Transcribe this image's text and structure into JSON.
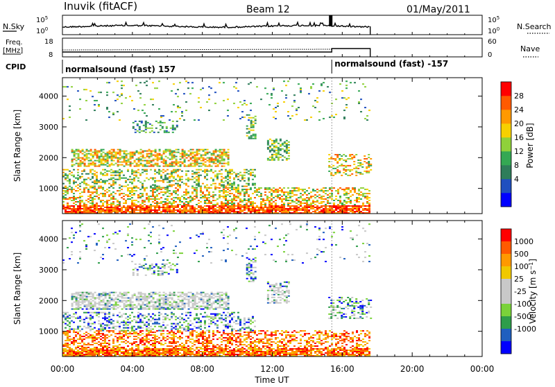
{
  "header": {
    "station": "Inuvik (fitACF)",
    "beam": "Beam 12",
    "date": "01/May/2011"
  },
  "labels": {
    "nsky": "N.Sky",
    "nsearch": "N.Search",
    "freq_line1": "Freq.",
    "freq_line2": "[MHz]",
    "nave": "Nave",
    "cpid": "CPID"
  },
  "nsky_axis": {
    "left_ticks": [
      "10^5",
      "10^0"
    ],
    "right_ticks": [
      "10^5",
      "10^0"
    ]
  },
  "freq_axis": {
    "left_ticks": [
      "18",
      "8"
    ],
    "right_ticks": [
      "60",
      "0"
    ]
  },
  "cpid_segments": [
    {
      "label": "normalsound (fast) 157",
      "start_hour": 0
    },
    {
      "label": "normalsound (fast) -157",
      "start_hour": 15.4
    }
  ],
  "colors": {
    "power_scale": [
      "#0000ff",
      "#1f4fbf",
      "#2e7d5a",
      "#34a853",
      "#8fd13a",
      "#f7d000",
      "#ff9900",
      "#ff5a00",
      "#ff0000"
    ],
    "velocity_scale": [
      "#ff0000",
      "#ff5a00",
      "#ff9900",
      "#f0c800",
      "#c8c8c8",
      "#c8c8c8",
      "#7ad23a",
      "#2e9d4a",
      "#1f5fbf",
      "#0000ff"
    ]
  },
  "chart_data": [
    {
      "type": "heatmap",
      "panel": "power",
      "ylabel": "Slant Range [km]",
      "yticks": [
        1000,
        2000,
        3000,
        4000
      ],
      "ylim": [
        180,
        4600
      ],
      "xlim": [
        0,
        24
      ],
      "data_end_hour": 17.6,
      "colorbar": {
        "label": "Power [dB]",
        "ticks": [
          "28",
          "24",
          "20",
          "16",
          "12",
          "8",
          "4"
        ],
        "range": [
          0,
          32
        ]
      }
    },
    {
      "type": "heatmap",
      "panel": "velocity",
      "ylabel": "Slant Range [km]",
      "yticks": [
        1000,
        2000,
        3000,
        4000
      ],
      "ylim": [
        180,
        4600
      ],
      "xlim": [
        0,
        24
      ],
      "data_end_hour": 17.6,
      "colorbar": {
        "label": "Velocity [m s^-1]",
        "ticks": [
          "1000",
          "500",
          "100",
          "25",
          "-25",
          "-100",
          "-500",
          "-1000"
        ]
      }
    }
  ],
  "time_axis": {
    "ticks": [
      "00:00",
      "04:00",
      "08:00",
      "12:00",
      "16:00",
      "20:00",
      "00:00"
    ],
    "label": "Time UT"
  }
}
